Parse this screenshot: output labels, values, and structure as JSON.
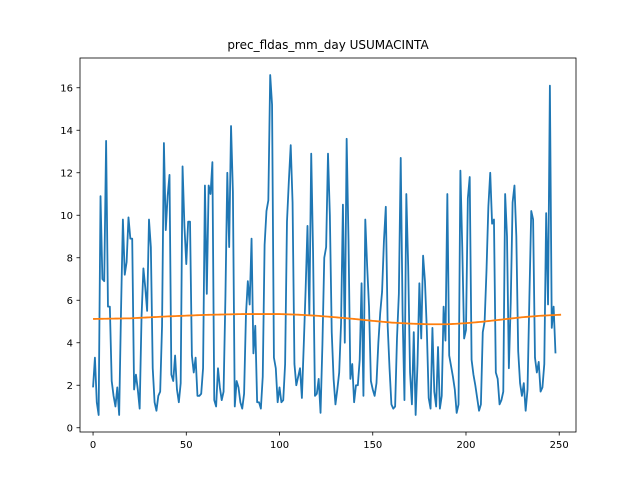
{
  "chart_data": {
    "type": "line",
    "title": "prec_fldas_mm_day USUMACINTA",
    "xlabel": "",
    "ylabel": "",
    "xlim": [
      -7,
      259
    ],
    "ylim": [
      -0.2,
      17.4
    ],
    "grid": false,
    "legend": "none",
    "x_ticks": [
      0,
      50,
      100,
      150,
      200,
      250
    ],
    "y_ticks": [
      0,
      2,
      4,
      6,
      8,
      10,
      12,
      14,
      16
    ],
    "series": [
      {
        "color": "#1f77b4",
        "x_start": 0,
        "x_step": 1,
        "values": [
          1.9,
          3.3,
          1.2,
          0.6,
          10.9,
          7.0,
          6.9,
          13.5,
          5.7,
          5.7,
          2.2,
          1.5,
          1.0,
          1.9,
          0.6,
          5.5,
          9.8,
          7.2,
          7.8,
          9.9,
          8.9,
          8.9,
          1.8,
          2.5,
          1.8,
          0.9,
          5.2,
          7.5,
          6.6,
          5.5,
          9.8,
          8.5,
          2.8,
          1.2,
          0.8,
          1.5,
          1.7,
          4.8,
          13.4,
          9.3,
          10.9,
          11.9,
          2.5,
          2.2,
          3.4,
          1.8,
          1.2,
          2.1,
          12.3,
          9.5,
          7.7,
          9.7,
          9.7,
          3.4,
          2.6,
          3.3,
          1.5,
          1.5,
          1.6,
          2.8,
          11.4,
          6.3,
          11.4,
          11.0,
          12.5,
          1.3,
          1.0,
          2.8,
          1.9,
          1.3,
          1.7,
          6.2,
          12.0,
          8.5,
          14.2,
          11.1,
          1.0,
          2.2,
          1.9,
          1.2,
          0.9,
          1.6,
          5.3,
          6.9,
          5.8,
          8.9,
          3.5,
          4.8,
          1.2,
          1.2,
          0.9,
          2.4,
          8.6,
          10.2,
          10.7,
          16.6,
          15.2,
          3.3,
          2.8,
          1.2,
          1.9,
          1.2,
          1.3,
          3.0,
          9.7,
          11.6,
          13.3,
          10.6,
          3.0,
          2.0,
          2.4,
          2.8,
          1.4,
          3.9,
          6.5,
          9.5,
          5.3,
          12.9,
          8.2,
          1.5,
          1.6,
          2.3,
          0.7,
          3.9,
          8.0,
          8.5,
          12.9,
          10.0,
          4.5,
          2.3,
          1.1,
          1.8,
          2.6,
          4.9,
          10.5,
          4.0,
          13.6,
          8.8,
          2.3,
          3.0,
          1.2,
          2.0,
          2.0,
          3.2,
          6.8,
          1.5,
          9.8,
          7.6,
          5.7,
          2.2,
          1.8,
          1.5,
          2.1,
          4.0,
          5.4,
          6.4,
          8.8,
          10.4,
          4.8,
          2.8,
          1.1,
          0.9,
          1.0,
          4.2,
          6.3,
          12.7,
          5.4,
          1.3,
          11.0,
          7.6,
          2.6,
          1.1,
          4.5,
          0.6,
          3.0,
          6.8,
          4.2,
          8.1,
          6.9,
          4.6,
          1.4,
          0.9,
          4.7,
          1.7,
          1.0,
          3.8,
          0.9,
          1.5,
          5.7,
          4.1,
          11.0,
          3.4,
          2.9,
          2.4,
          1.8,
          0.7,
          1.1,
          12.1,
          8.5,
          4.2,
          4.6,
          10.8,
          11.8,
          3.2,
          2.5,
          2.0,
          1.4,
          0.8,
          1.1,
          4.5,
          5.0,
          7.4,
          10.4,
          12.0,
          9.6,
          9.8,
          2.6,
          2.3,
          1.1,
          1.3,
          1.7,
          11.0,
          9.0,
          2.8,
          5.9,
          10.6,
          11.4,
          9.0,
          3.6,
          2.1,
          1.5,
          2.1,
          0.8,
          1.8,
          6.1,
          10.2,
          9.8,
          3.3,
          2.6,
          3.1,
          1.7,
          1.9,
          3.0,
          10.1,
          5.8,
          16.1,
          4.7,
          5.7,
          3.5
        ]
      },
      {
        "color": "#ff7f0e",
        "x_start": 0,
        "x_step": 1,
        "values_keypoints": {
          "x": [
            0,
            20,
            40,
            60,
            80,
            100,
            110,
            120,
            130,
            140,
            150,
            160,
            170,
            180,
            190,
            200,
            210,
            220,
            230,
            240,
            251
          ],
          "y": [
            5.12,
            5.15,
            5.24,
            5.31,
            5.35,
            5.35,
            5.32,
            5.27,
            5.2,
            5.12,
            5.03,
            4.95,
            4.9,
            4.87,
            4.87,
            4.92,
            5.0,
            5.1,
            5.2,
            5.27,
            5.32
          ]
        }
      }
    ]
  }
}
